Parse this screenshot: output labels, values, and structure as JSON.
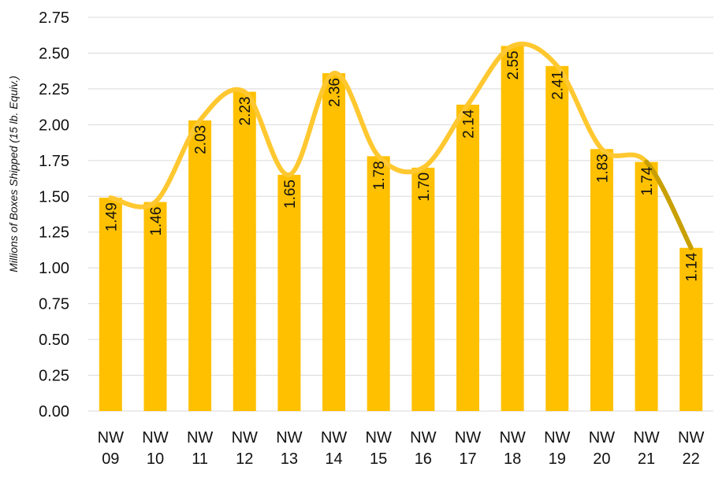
{
  "chart_data": {
    "type": "bar",
    "ylabel": "Millions of Boxes Shipped (15 lb. Equiv.)",
    "xlabel": "",
    "title": "",
    "ylim": [
      0,
      2.75
    ],
    "yticks": [
      "0.00",
      "0.25",
      "0.50",
      "0.75",
      "1.00",
      "1.25",
      "1.50",
      "1.75",
      "2.00",
      "2.25",
      "2.50",
      "2.75"
    ],
    "grid": true,
    "legend": "none",
    "categories": [
      [
        "NW",
        "09"
      ],
      [
        "NW",
        "10"
      ],
      [
        "NW",
        "11"
      ],
      [
        "NW",
        "12"
      ],
      [
        "NW",
        "13"
      ],
      [
        "NW",
        "14"
      ],
      [
        "NW",
        "15"
      ],
      [
        "NW",
        "16"
      ],
      [
        "NW",
        "17"
      ],
      [
        "NW",
        "18"
      ],
      [
        "NW",
        "19"
      ],
      [
        "NW",
        "20"
      ],
      [
        "NW",
        "21"
      ],
      [
        "NW",
        "22"
      ]
    ],
    "values": [
      1.49,
      1.46,
      2.03,
      2.23,
      1.65,
      2.36,
      1.78,
      1.7,
      2.14,
      2.55,
      2.41,
      1.83,
      1.74,
      1.14
    ],
    "value_labels": [
      "1.49",
      "1.46",
      "2.03",
      "2.23",
      "1.65",
      "2.36",
      "1.78",
      "1.70",
      "2.14",
      "2.55",
      "2.41",
      "1.83",
      "1.74",
      "1.14"
    ],
    "overlay": {
      "type": "line",
      "smooth": true,
      "values": [
        1.49,
        1.46,
        2.03,
        2.23,
        1.65,
        2.36,
        1.78,
        1.7,
        2.14,
        2.55,
        2.41,
        1.83,
        1.74,
        1.14
      ],
      "highlight_last_segment": true
    },
    "colors": {
      "bar": "#FFC000",
      "line": "#FFC830",
      "line_last_segment": "#C9A000",
      "grid": "#D9D9D9",
      "text": "#111111"
    }
  }
}
